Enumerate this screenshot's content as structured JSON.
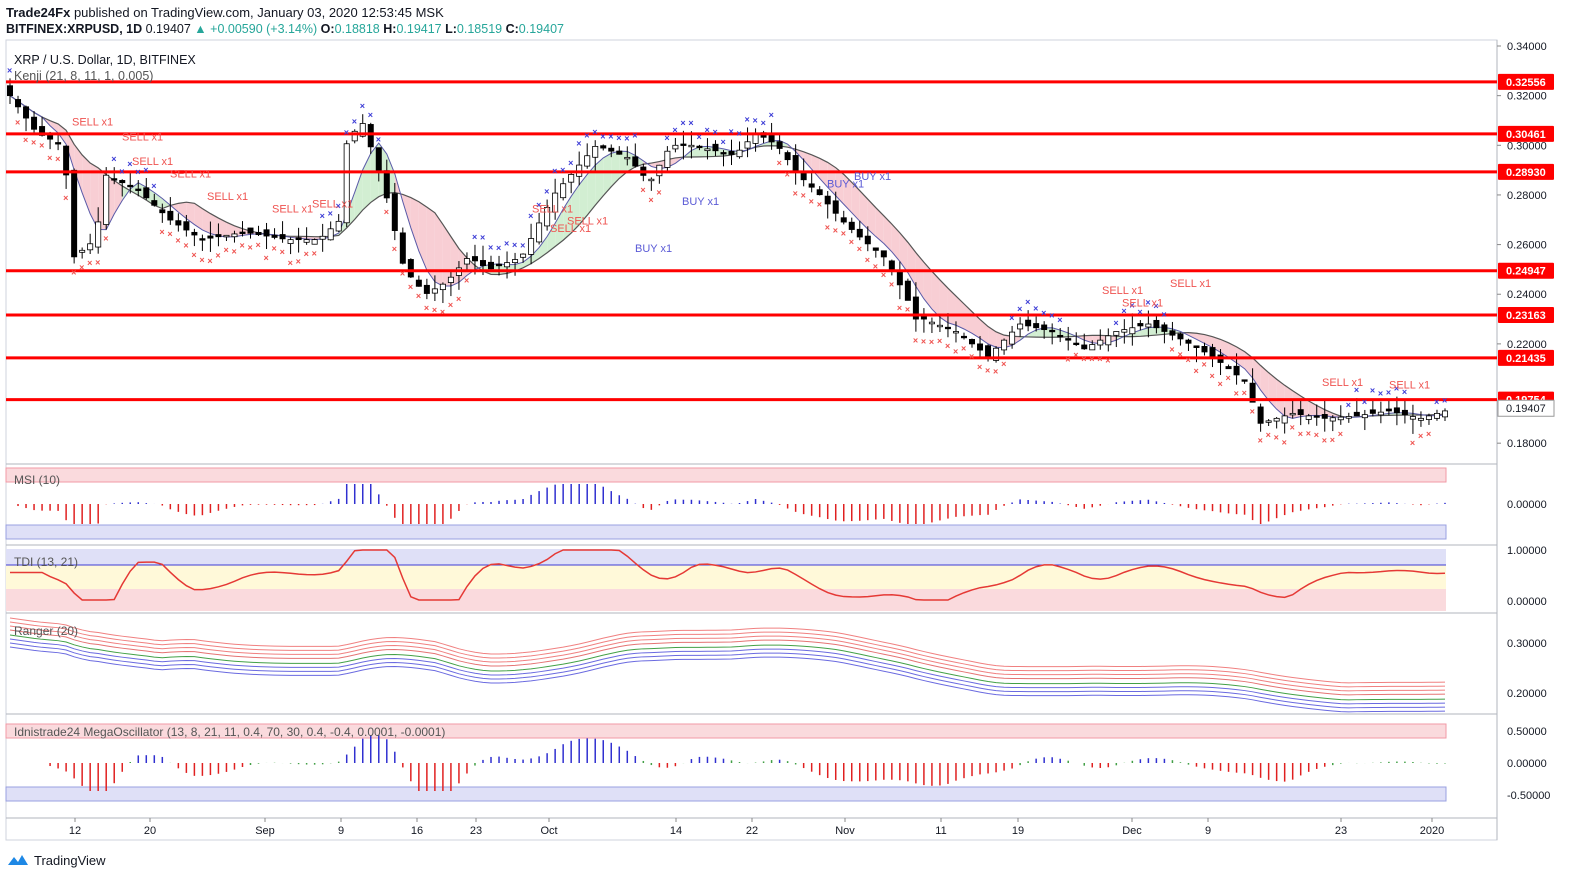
{
  "header": {
    "publisher": "Trade24Fx",
    "published_text": "published on TradingView.com, January 03, 2020 12:53:45 MSK",
    "symbol": "BITFINEX:XRPUSD, 1D",
    "last": "0.19407",
    "change": "+0.00590 (+3.14%)",
    "o_label": "O:",
    "o": "0.18818",
    "h_label": "H:",
    "h": "0.19417",
    "l_label": "L:",
    "l": "0.18519",
    "c_label": "C:",
    "c": "0.19407"
  },
  "main_pane": {
    "title": "XRP / U.S. Dollar, 1D, BITFINEX",
    "indicator": "Kenji (21, 8, 11, 1, 0.005)",
    "price_axis": [
      "0.34000",
      "0.32000",
      "0.30000",
      "0.28000",
      "0.26000",
      "0.24000",
      "0.22000",
      "0.18000"
    ],
    "levels": [
      {
        "value": "0.32556"
      },
      {
        "value": "0.30461"
      },
      {
        "value": "0.28930"
      },
      {
        "value": "0.24947"
      },
      {
        "value": "0.23163"
      },
      {
        "value": "0.21435"
      },
      {
        "value": "0.19754"
      }
    ],
    "last_price_label": "0.19407",
    "signals": [
      {
        "text": "SELL x1",
        "type": "sell",
        "n": 0
      },
      {
        "text": "SELL x1",
        "type": "sell",
        "n": 1
      },
      {
        "text": "SELL x1",
        "type": "sell",
        "n": 2
      },
      {
        "text": "SELL x1",
        "type": "sell",
        "n": 3
      },
      {
        "text": "SELL x1",
        "type": "sell",
        "n": 4
      },
      {
        "text": "SELL x1",
        "type": "sell",
        "n": 5
      },
      {
        "text": "SELL x1",
        "type": "sell",
        "n": 6
      },
      {
        "text": "SELL x1",
        "type": "sell",
        "n": 7
      },
      {
        "text": "SELL x1",
        "type": "sell",
        "n": 8
      },
      {
        "text": "SELL x1",
        "type": "sell",
        "n": 9
      },
      {
        "text": "SELL x1",
        "type": "sell",
        "n": 10
      },
      {
        "text": "SELL x1",
        "type": "sell",
        "n": 11
      },
      {
        "text": "SELL x1",
        "type": "sell",
        "n": 12
      },
      {
        "text": "SELL x1",
        "type": "sell",
        "n": 13
      },
      {
        "text": "SELL x1",
        "type": "sell",
        "n": 14
      },
      {
        "text": "BUY x1",
        "type": "buy",
        "n": 0
      },
      {
        "text": "BUY x1",
        "type": "buy",
        "n": 1
      },
      {
        "text": "BUY x1",
        "type": "buy",
        "n": 2
      },
      {
        "text": "BUY x1",
        "type": "buy",
        "n": 3
      }
    ]
  },
  "panes": {
    "msi": {
      "title": "MSI (10)",
      "axis": [
        "0.00000"
      ]
    },
    "tdi": {
      "title": "TDI (13, 21)",
      "axis": [
        "1.00000",
        "0.00000"
      ]
    },
    "ranger": {
      "title": "Ranger (20)",
      "axis": [
        "0.30000",
        "0.20000"
      ]
    },
    "mega": {
      "title": "Idnistrade24 MegaOscillator (13, 8, 21, 11, 0.4, 70, 30, 0.4, -0.4, 0.0001, -0.0001)",
      "axis": [
        "0.50000",
        "0.00000",
        "-0.50000"
      ]
    }
  },
  "time_axis": [
    "12",
    "20",
    "Sep",
    "9",
    "16",
    "23",
    "Oct",
    "14",
    "22",
    "Nov",
    "11",
    "19",
    "Dec",
    "9",
    "23",
    "2020"
  ],
  "footer": {
    "brand": "TradingView"
  },
  "colors": {
    "level": "#ff0000",
    "up": "#26a69a",
    "sell": "#ef5350",
    "buy": "#3c3cd6",
    "cloud_red": "#f7c9cf",
    "cloud_green": "#cdeccd"
  }
}
